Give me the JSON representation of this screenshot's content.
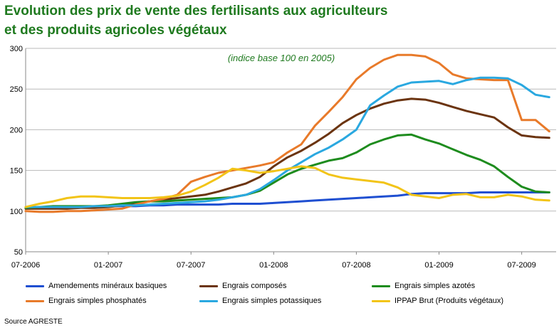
{
  "title_line1": "Evolution des prix de vente des fertilisants aux agriculteurs",
  "title_line2": "et des produits agricoles végétaux",
  "source": "Source AGRESTE",
  "chart_data": {
    "type": "line",
    "annotation": "(indice base 100 en 2005)",
    "xlabel": "",
    "ylabel": "",
    "ylim": [
      50,
      300
    ],
    "yticks": [
      50,
      100,
      150,
      200,
      250,
      300
    ],
    "x_tick_labels": [
      "07-2006",
      "01-2007",
      "07-2007",
      "01-2008",
      "07-2008",
      "01-2009",
      "07-2009"
    ],
    "x_tick_months": [
      0,
      6,
      12,
      18,
      24,
      30,
      36
    ],
    "grid": "horizontal",
    "legend_position": "bottom",
    "x_months_from_jul_2006": [
      0,
      1,
      2,
      3,
      4,
      5,
      6,
      7,
      8,
      9,
      10,
      11,
      12,
      13,
      14,
      15,
      16,
      17,
      18,
      19,
      20,
      21,
      22,
      23,
      24,
      25,
      26,
      27,
      28,
      29,
      30,
      31,
      32,
      33,
      34,
      35,
      36,
      37,
      38
    ],
    "series": [
      {
        "name": "Amendements minéraux basiques",
        "color": "#1f4fd1",
        "values": [
          104,
          104,
          105,
          105,
          105,
          105,
          106,
          106,
          106,
          107,
          107,
          108,
          108,
          108,
          108,
          109,
          109,
          109,
          110,
          111,
          112,
          113,
          114,
          115,
          116,
          117,
          118,
          119,
          121,
          122,
          122,
          122,
          122,
          123,
          123,
          123,
          123,
          123,
          123
        ]
      },
      {
        "name": "Engrais composés",
        "color": "#6b3410",
        "values": [
          103,
          103,
          103,
          103,
          104,
          104,
          105,
          107,
          110,
          112,
          114,
          116,
          118,
          120,
          124,
          129,
          134,
          142,
          155,
          166,
          174,
          184,
          195,
          208,
          218,
          226,
          232,
          236,
          238,
          237,
          233,
          228,
          223,
          219,
          215,
          203,
          193,
          191,
          190
        ]
      },
      {
        "name": "Engrais simples azotés",
        "color": "#1e8c1e",
        "values": [
          104,
          105,
          106,
          106,
          106,
          106,
          107,
          109,
          111,
          112,
          112,
          113,
          114,
          115,
          116,
          117,
          120,
          125,
          135,
          145,
          152,
          157,
          162,
          165,
          172,
          182,
          188,
          193,
          194,
          188,
          183,
          176,
          169,
          163,
          155,
          142,
          130,
          124,
          123
        ]
      },
      {
        "name": "Engrais simples phosphatés",
        "color": "#e87a2a",
        "values": [
          100,
          99,
          99,
          100,
          100,
          101,
          102,
          103,
          108,
          112,
          115,
          120,
          136,
          142,
          147,
          150,
          153,
          156,
          160,
          172,
          182,
          205,
          222,
          240,
          262,
          276,
          286,
          292,
          292,
          290,
          282,
          268,
          263,
          262,
          261,
          261,
          212,
          212,
          198
        ]
      },
      {
        "name": "Engrais simples potassiques",
        "color": "#2aa8e0",
        "values": [
          105,
          105,
          105,
          105,
          105,
          106,
          106,
          107,
          107,
          108,
          109,
          110,
          111,
          112,
          114,
          117,
          120,
          127,
          138,
          150,
          160,
          170,
          178,
          188,
          200,
          230,
          242,
          253,
          258,
          259,
          260,
          256,
          261,
          264,
          264,
          263,
          255,
          243,
          240
        ]
      },
      {
        "name": "IPPAP Brut (Produits végétaux)",
        "color": "#f2c418",
        "values": [
          105,
          109,
          112,
          116,
          118,
          118,
          117,
          116,
          116,
          116,
          117,
          119,
          124,
          132,
          141,
          152,
          150,
          147,
          149,
          152,
          155,
          153,
          145,
          141,
          139,
          137,
          135,
          129,
          120,
          118,
          116,
          120,
          121,
          117,
          117,
          120,
          118,
          114,
          113
        ]
      }
    ]
  }
}
